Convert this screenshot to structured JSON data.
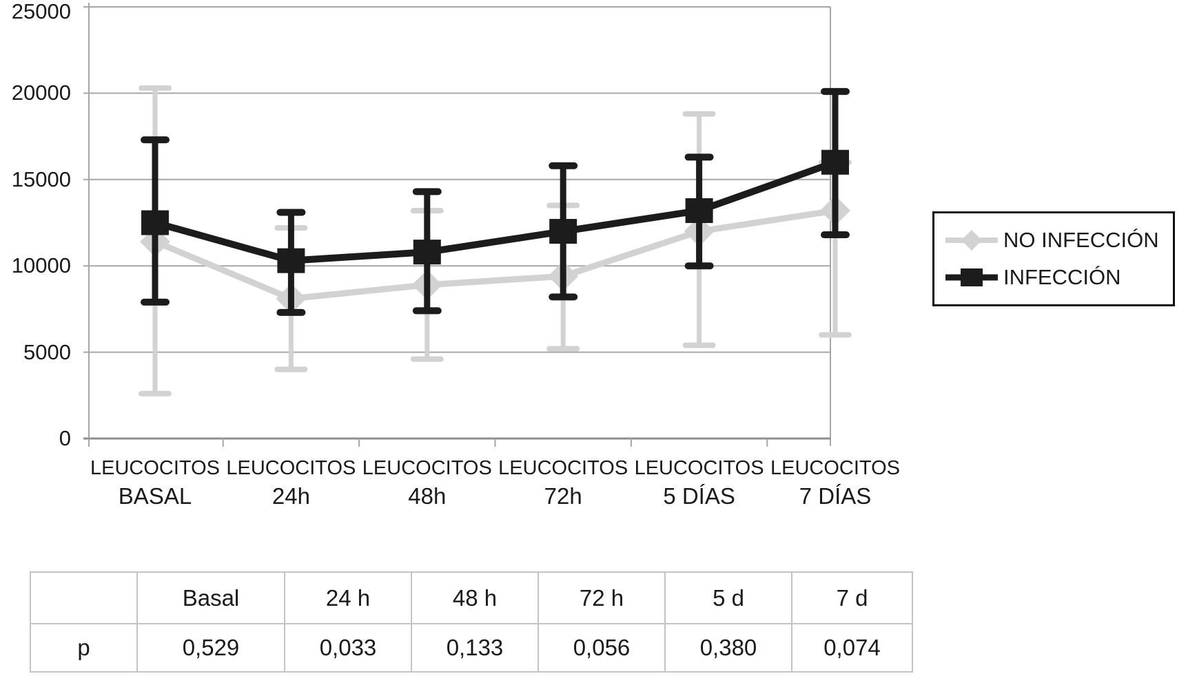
{
  "chart_data": {
    "type": "line",
    "title": "",
    "ylabel": "",
    "xlabel": "",
    "ylim": [
      0,
      25000
    ],
    "yticks": [
      0,
      5000,
      10000,
      15000,
      20000,
      25000
    ],
    "grid": true,
    "legend_position": "right",
    "categories": [
      {
        "line1": "LEUCOCITOS",
        "line2": "BASAL"
      },
      {
        "line1": "LEUCOCITOS",
        "line2": "24h"
      },
      {
        "line1": "LEUCOCITOS",
        "line2": "48h"
      },
      {
        "line1": "LEUCOCITOS",
        "line2": "72h"
      },
      {
        "line1": "LEUCOCITOS",
        "line2": "5 DÍAS"
      },
      {
        "line1": "LEUCOCITOS",
        "line2": "7 DÍAS"
      }
    ],
    "series": [
      {
        "name": "NO INFECCIÓN",
        "marker": "diamond",
        "color": "#d2d2d2",
        "values": [
          11400,
          8100,
          8900,
          9400,
          12000,
          13200
        ],
        "err_low": [
          2600,
          4000,
          4600,
          5200,
          5400,
          6000
        ],
        "err_high": [
          20300,
          12200,
          13200,
          13500,
          18800,
          16000
        ]
      },
      {
        "name": "INFECCIÓN",
        "marker": "square",
        "color": "#1c1c1c",
        "values": [
          12500,
          10300,
          10800,
          12000,
          13200,
          16000
        ],
        "err_low": [
          7900,
          7300,
          7400,
          8200,
          10000,
          11800
        ],
        "err_high": [
          17300,
          13100,
          14300,
          15800,
          16300,
          20100
        ]
      }
    ]
  },
  "table": {
    "headers": [
      "",
      "Basal",
      "24 h",
      "48 h",
      "72 h",
      "5 d",
      "7 d"
    ],
    "rows": [
      {
        "label": "p",
        "values": [
          "0,529",
          "0,033",
          "0,133",
          "0,056",
          "0,380",
          "0,074"
        ]
      }
    ]
  },
  "colors": {
    "gridline": "#a6a6a6",
    "axis": "#8f8f8f",
    "table_border": "#c3c3c3",
    "text": "#1a1a1a"
  }
}
